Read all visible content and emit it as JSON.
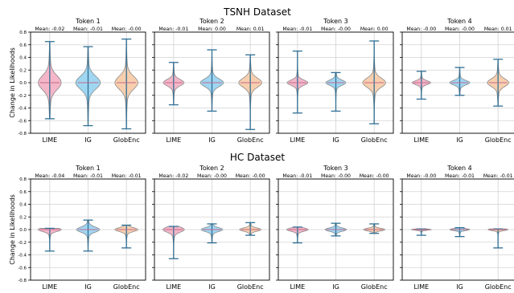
{
  "figure": {
    "ylabel": "Change in Likelihoods",
    "yticks": [
      -0.8,
      -0.6,
      -0.4,
      -0.2,
      0.0,
      0.2,
      0.4,
      0.6,
      0.8
    ],
    "ylim": [
      -0.8,
      0.8
    ],
    "categories": [
      "LIME",
      "IG",
      "GlobEnc"
    ],
    "colors": {
      "LIME": "#f4b6c8",
      "IG": "#9fd6f2",
      "GlobEnc": "#f7cfae",
      "whisker": "#2f6f95",
      "edge": "#8a8a8a"
    }
  },
  "chart_data": [
    {
      "type": "violin",
      "title": "TSNH Dataset",
      "panels": [
        {
          "title": "Token 1",
          "means": [
            "Mean: -0.02",
            "Mean: -0.01",
            "Mean: -0.00"
          ],
          "series": [
            {
              "category": "LIME",
              "min": -0.57,
              "max": 0.65,
              "width": 0.3,
              "spread": 0.11
            },
            {
              "category": "IG",
              "min": -0.68,
              "max": 0.57,
              "width": 0.32,
              "spread": 0.1
            },
            {
              "category": "GlobEnc",
              "min": -0.73,
              "max": 0.69,
              "width": 0.3,
              "spread": 0.1
            }
          ]
        },
        {
          "title": "Token 2",
          "means": [
            "Mean: -0.01",
            "Mean: 0.00",
            "Mean: 0.01"
          ],
          "series": [
            {
              "category": "LIME",
              "min": -0.35,
              "max": 0.32,
              "width": 0.27,
              "spread": 0.05
            },
            {
              "category": "IG",
              "min": -0.45,
              "max": 0.52,
              "width": 0.3,
              "spread": 0.06
            },
            {
              "category": "GlobEnc",
              "min": -0.74,
              "max": 0.44,
              "width": 0.3,
              "spread": 0.07
            }
          ]
        },
        {
          "title": "Token 3",
          "means": [
            "Mean: -0.01",
            "Mean: -0.00",
            "Mean: 0.00"
          ],
          "series": [
            {
              "category": "LIME",
              "min": -0.48,
              "max": 0.5,
              "width": 0.27,
              "spread": 0.04
            },
            {
              "category": "IG",
              "min": -0.45,
              "max": 0.16,
              "width": 0.26,
              "spread": 0.04
            },
            {
              "category": "GlobEnc",
              "min": -0.65,
              "max": 0.66,
              "width": 0.3,
              "spread": 0.07
            }
          ]
        },
        {
          "title": "Token 4",
          "means": [
            "Mean: -0.00",
            "Mean: -0.00",
            "Mean: 0.01"
          ],
          "series": [
            {
              "category": "LIME",
              "min": -0.26,
              "max": 0.18,
              "width": 0.24,
              "spread": 0.03
            },
            {
              "category": "IG",
              "min": -0.2,
              "max": 0.24,
              "width": 0.26,
              "spread": 0.035
            },
            {
              "category": "GlobEnc",
              "min": -0.37,
              "max": 0.37,
              "width": 0.28,
              "spread": 0.06
            }
          ]
        }
      ]
    },
    {
      "type": "violin",
      "title": "HC Dataset",
      "panels": [
        {
          "title": "Token 1",
          "means": [
            "Mean: -0.04",
            "Mean: -0.01",
            "Mean: -0.01"
          ],
          "series": [
            {
              "category": "LIME",
              "min": -0.34,
              "max": 0.02,
              "width": 0.3,
              "spread": 0.03
            },
            {
              "category": "IG",
              "min": -0.34,
              "max": 0.15,
              "width": 0.3,
              "spread": 0.04
            },
            {
              "category": "GlobEnc",
              "min": -0.29,
              "max": 0.07,
              "width": 0.3,
              "spread": 0.03
            }
          ]
        },
        {
          "title": "Token 2",
          "means": [
            "Mean: -0.02",
            "Mean: -0.00",
            "Mean: -0.00"
          ],
          "series": [
            {
              "category": "LIME",
              "min": -0.46,
              "max": 0.05,
              "width": 0.28,
              "spread": 0.04
            },
            {
              "category": "IG",
              "min": -0.21,
              "max": 0.09,
              "width": 0.28,
              "spread": 0.03
            },
            {
              "category": "GlobEnc",
              "min": -0.09,
              "max": 0.11,
              "width": 0.28,
              "spread": 0.025
            }
          ]
        },
        {
          "title": "Token 3",
          "means": [
            "Mean: -0.01",
            "Mean: -0.00",
            "Mean: -0.00"
          ],
          "series": [
            {
              "category": "LIME",
              "min": -0.21,
              "max": 0.04,
              "width": 0.28,
              "spread": 0.025
            },
            {
              "category": "IG",
              "min": -0.1,
              "max": 0.1,
              "width": 0.28,
              "spread": 0.025
            },
            {
              "category": "GlobEnc",
              "min": -0.06,
              "max": 0.09,
              "width": 0.28,
              "spread": 0.02
            }
          ]
        },
        {
          "title": "Token 4",
          "means": [
            "Mean: -0.00",
            "Mean: -0.01",
            "Mean: -0.01"
          ],
          "series": [
            {
              "category": "LIME",
              "min": -0.09,
              "max": 0.01,
              "width": 0.26,
              "spread": 0.01
            },
            {
              "category": "IG",
              "min": -0.11,
              "max": 0.03,
              "width": 0.26,
              "spread": 0.015
            },
            {
              "category": "GlobEnc",
              "min": -0.29,
              "max": 0.01,
              "width": 0.26,
              "spread": 0.015
            }
          ]
        }
      ]
    }
  ]
}
